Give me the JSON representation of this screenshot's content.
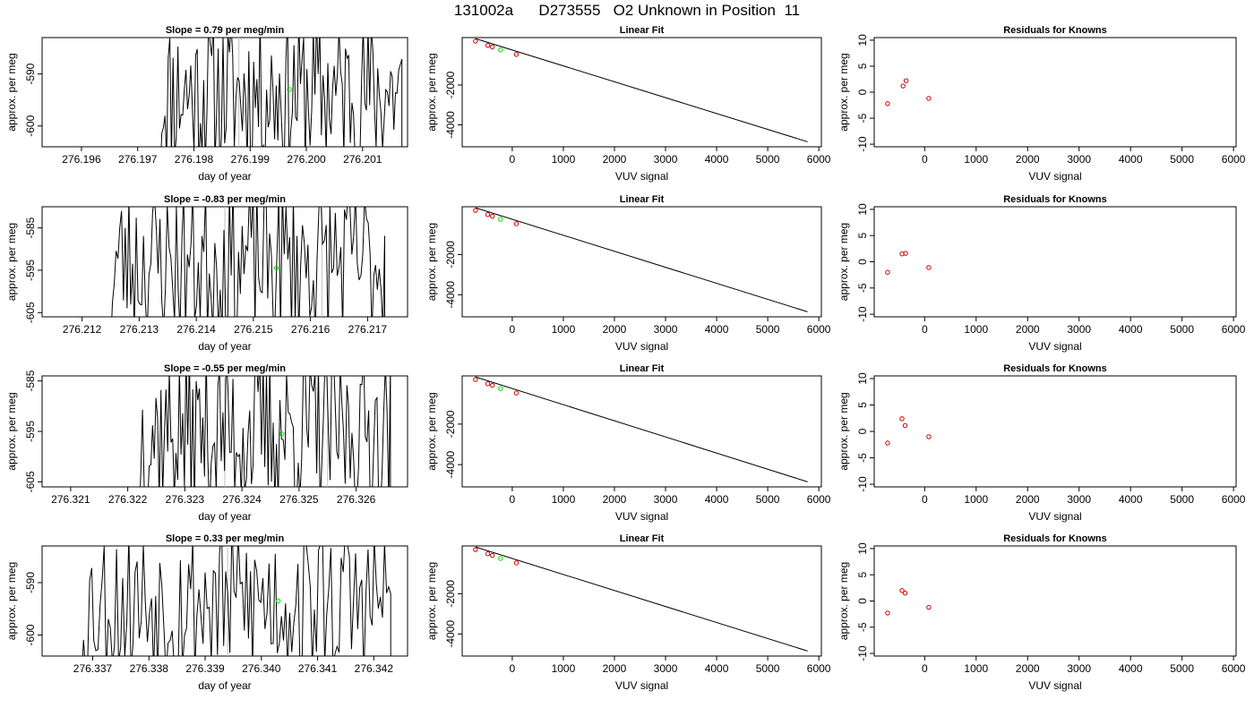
{
  "page_title": "131002a      D273555   O2 Unknown in Position  11",
  "chart_data": [
    {
      "type": "line",
      "title": "Slope =  0.79  per meg/min",
      "xlabel": "day of year",
      "ylabel": "approx. per meg",
      "xlim": [
        276.1953,
        276.2018
      ],
      "ylim": [
        -604,
        -583
      ],
      "xticks": [
        276.196,
        276.197,
        276.198,
        276.199,
        276.2,
        276.201
      ],
      "xtick_labels": [
        "276.196",
        "276.197",
        "276.198",
        "276.199",
        "276.200",
        "276.201"
      ],
      "yticks": [
        -600,
        -590
      ],
      "ytick_labels": [
        "-600",
        "-590"
      ],
      "vlines": [
        276.1988
      ],
      "start": 276.1974,
      "end": 276.2017,
      "seed": 11,
      "marker": {
        "x": 276.1997,
        "y": -593.0
      }
    },
    {
      "type": "line",
      "title": "Slope =  -0.83  per meg/min",
      "xlabel": "day of year",
      "ylabel": "approx. per meg",
      "xlim": [
        276.2113,
        276.2177
      ],
      "ylim": [
        -606,
        -580
      ],
      "xticks": [
        276.212,
        276.213,
        276.214,
        276.215,
        276.216,
        276.217
      ],
      "xtick_labels": [
        "276.212",
        "276.213",
        "276.214",
        "276.215",
        "276.216",
        "276.217"
      ],
      "yticks": [
        -605,
        -595,
        -585
      ],
      "ytick_labels": [
        "-605",
        "-595",
        "-585"
      ],
      "vlines": [
        276.2145,
        276.2162
      ],
      "start": 276.2125,
      "end": 276.2173,
      "seed": 23,
      "marker": {
        "x": 276.2154,
        "y": -594.5
      }
    },
    {
      "type": "line",
      "title": "Slope =  -0.55  per meg/min",
      "xlabel": "day of year",
      "ylabel": "approx. per meg",
      "xlim": [
        276.3205,
        276.3269
      ],
      "ylim": [
        -606,
        -584
      ],
      "xticks": [
        276.321,
        276.322,
        276.323,
        276.324,
        276.325,
        276.326
      ],
      "xtick_labels": [
        "276.321",
        "276.322",
        "276.323",
        "276.324",
        "276.325",
        "276.326"
      ],
      "yticks": [
        -605,
        -595,
        -585
      ],
      "ytick_labels": [
        "-605",
        "-595",
        "-585"
      ],
      "vlines": [
        276.3237,
        276.3255
      ],
      "start": 276.3222,
      "end": 276.3266,
      "seed": 37,
      "marker": {
        "x": 276.3247,
        "y": -595.5
      }
    },
    {
      "type": "line",
      "title": "Slope =  0.33  per meg/min",
      "xlabel": "day of year",
      "ylabel": "approx. per meg",
      "xlim": [
        276.3361,
        276.3426
      ],
      "ylim": [
        -604,
        -583
      ],
      "xticks": [
        276.337,
        276.338,
        276.339,
        276.34,
        276.341,
        276.342
      ],
      "xtick_labels": [
        "276.337",
        "276.338",
        "276.339",
        "276.340",
        "276.341",
        "276.342"
      ],
      "yticks": [
        -600,
        -590
      ],
      "ytick_labels": [
        "-600",
        "-590"
      ],
      "vlines": [
        276.3394
      ],
      "start": 276.3368,
      "end": 276.3423,
      "seed": 53,
      "marker": {
        "x": 276.3403,
        "y": -593.5
      }
    },
    {
      "type": "scatter",
      "title": "Linear Fit",
      "xlabel": "VUV signal",
      "ylabel": "approx. per meg",
      "xlim": [
        -980,
        6050
      ],
      "ylim": [
        -5100,
        380
      ],
      "xticks": [
        0,
        1000,
        2000,
        3000,
        4000,
        5000,
        6000
      ],
      "yticks": [
        -4000,
        -2000
      ],
      "ytick_labels": [
        "-4000",
        "-2000"
      ],
      "line": [
        [
          -720,
          330
        ],
        [
          5780,
          -4850
        ]
      ],
      "knowns": [
        {
          "x": -720,
          "y": 200
        },
        {
          "x": -480,
          "y": -10
        },
        {
          "x": -390,
          "y": -90
        },
        {
          "x": 80,
          "y": -465
        }
      ],
      "unknown": {
        "x": -230,
        "y": -240
      }
    },
    {
      "type": "scatter",
      "title": "Linear Fit",
      "xlabel": "VUV signal",
      "ylabel": "approx. per meg",
      "xlim": [
        -980,
        6050
      ],
      "ylim": [
        -5100,
        380
      ],
      "xticks": [
        0,
        1000,
        2000,
        3000,
        4000,
        5000,
        6000
      ],
      "yticks": [
        -4000,
        -2000
      ],
      "ytick_labels": [
        "-4000",
        "-2000"
      ],
      "line": [
        [
          -720,
          330
        ],
        [
          5780,
          -4850
        ]
      ],
      "knowns": [
        {
          "x": -720,
          "y": 200
        },
        {
          "x": -480,
          "y": -10
        },
        {
          "x": -390,
          "y": -90
        },
        {
          "x": 80,
          "y": -465
        }
      ],
      "unknown": {
        "x": -230,
        "y": -240
      }
    },
    {
      "type": "scatter",
      "title": "Linear Fit",
      "xlabel": "VUV signal",
      "ylabel": "approx. per meg",
      "xlim": [
        -980,
        6050
      ],
      "ylim": [
        -5100,
        380
      ],
      "xticks": [
        0,
        1000,
        2000,
        3000,
        4000,
        5000,
        6000
      ],
      "yticks": [
        -4000,
        -2000
      ],
      "ytick_labels": [
        "-4000",
        "-2000"
      ],
      "line": [
        [
          -720,
          330
        ],
        [
          5780,
          -4850
        ]
      ],
      "knowns": [
        {
          "x": -720,
          "y": 200
        },
        {
          "x": -480,
          "y": -10
        },
        {
          "x": -390,
          "y": -90
        },
        {
          "x": 80,
          "y": -465
        }
      ],
      "unknown": {
        "x": -230,
        "y": -240
      }
    },
    {
      "type": "scatter",
      "title": "Linear Fit",
      "xlabel": "VUV signal",
      "ylabel": "approx. per meg",
      "xlim": [
        -980,
        6050
      ],
      "ylim": [
        -5100,
        380
      ],
      "xticks": [
        0,
        1000,
        2000,
        3000,
        4000,
        5000,
        6000
      ],
      "yticks": [
        -4000,
        -2000
      ],
      "ytick_labels": [
        "-4000",
        "-2000"
      ],
      "line": [
        [
          -720,
          330
        ],
        [
          5780,
          -4850
        ]
      ],
      "knowns": [
        {
          "x": -720,
          "y": 200
        },
        {
          "x": -480,
          "y": -10
        },
        {
          "x": -390,
          "y": -90
        },
        {
          "x": 80,
          "y": -465
        }
      ],
      "unknown": {
        "x": -230,
        "y": -240
      }
    },
    {
      "type": "scatter",
      "title": "Residuals for Knowns",
      "xlabel": "VUV signal",
      "ylabel": "approx. per meg",
      "xlim": [
        -980,
        6050
      ],
      "ylim": [
        -10.5,
        10.5
      ],
      "xticks": [
        0,
        1000,
        2000,
        3000,
        4000,
        5000,
        6000
      ],
      "yticks": [
        -10,
        -5,
        0,
        5,
        10
      ],
      "ytick_labels": [
        "-10",
        "-5",
        "0",
        "5",
        "10"
      ],
      "points": [
        {
          "x": -720,
          "y": -2.2
        },
        {
          "x": -420,
          "y": 1.2
        },
        {
          "x": -360,
          "y": 2.2
        },
        {
          "x": 80,
          "y": -1.2
        }
      ]
    },
    {
      "type": "scatter",
      "title": "Residuals for Knowns",
      "xlabel": "VUV signal",
      "ylabel": "approx. per meg",
      "xlim": [
        -980,
        6050
      ],
      "ylim": [
        -10.5,
        10.5
      ],
      "xticks": [
        0,
        1000,
        2000,
        3000,
        4000,
        5000,
        6000
      ],
      "yticks": [
        -10,
        -5,
        0,
        5,
        10
      ],
      "ytick_labels": [
        "-10",
        "-5",
        "0",
        "5",
        "10"
      ],
      "points": [
        {
          "x": -720,
          "y": -2.0
        },
        {
          "x": -440,
          "y": 1.5
        },
        {
          "x": -370,
          "y": 1.6
        },
        {
          "x": 80,
          "y": -1.1
        }
      ]
    },
    {
      "type": "scatter",
      "title": "Residuals for Knowns",
      "xlabel": "VUV signal",
      "ylabel": "approx. per meg",
      "xlim": [
        -980,
        6050
      ],
      "ylim": [
        -10.5,
        10.5
      ],
      "xticks": [
        0,
        1000,
        2000,
        3000,
        4000,
        5000,
        6000
      ],
      "yticks": [
        -10,
        -5,
        0,
        5,
        10
      ],
      "ytick_labels": [
        "-10",
        "-5",
        "0",
        "5",
        "10"
      ],
      "points": [
        {
          "x": -720,
          "y": -2.2
        },
        {
          "x": -440,
          "y": 2.4
        },
        {
          "x": -380,
          "y": 1.1
        },
        {
          "x": 80,
          "y": -1.0
        }
      ]
    },
    {
      "type": "scatter",
      "title": "Residuals for Knowns",
      "xlabel": "VUV signal",
      "ylabel": "approx. per meg",
      "xlim": [
        -980,
        6050
      ],
      "ylim": [
        -10.5,
        10.5
      ],
      "xticks": [
        0,
        1000,
        2000,
        3000,
        4000,
        5000,
        6000
      ],
      "yticks": [
        -10,
        -5,
        0,
        5,
        10
      ],
      "ytick_labels": [
        "-10",
        "-5",
        "0",
        "5",
        "10"
      ],
      "points": [
        {
          "x": -720,
          "y": -2.3
        },
        {
          "x": -440,
          "y": 2.0
        },
        {
          "x": -380,
          "y": 1.5
        },
        {
          "x": 80,
          "y": -1.2
        }
      ]
    }
  ],
  "colors": {
    "line": "#000000",
    "known_points": "#cc0000",
    "unknown_point": "#00dd00",
    "vline": "#c0c0c0"
  }
}
